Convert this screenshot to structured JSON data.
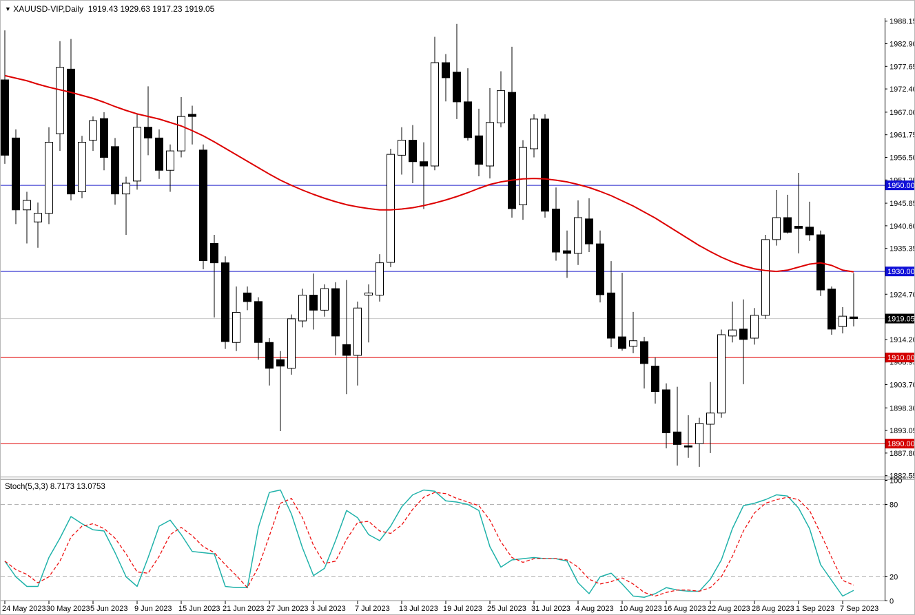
{
  "window": {
    "symbol_timeframe": "XAUUSD-VIP,Daily",
    "dropdown_arrow": "▼"
  },
  "chart_data": {
    "type": "candlestick",
    "symbol": "XAUUSD-VIP",
    "timeframe": "Daily",
    "title_ohlc": {
      "open": "1919.43",
      "high": "1929.63",
      "low": "1917.23",
      "close": "1919.05"
    },
    "layout_hints": {
      "ylim": [
        1882.5,
        1988.9
      ],
      "stoch_ylim": [
        0,
        100
      ],
      "grid": false,
      "legend_position": "none"
    },
    "colors": {
      "bull_fill": "#ffffff",
      "bear_fill": "#000000",
      "outline": "#000000",
      "ma": "#dd0000",
      "blue_line": "#2222cc",
      "blue_box": "#1010d8",
      "red_line": "#e00000",
      "red_box": "#d40000",
      "price_line": "#c8c8c8",
      "price_box": "#000000",
      "stoch_k": "#20b2aa",
      "stoch_d": "#ee1111",
      "stoch_level": "#b4b4b4"
    },
    "price_ticks": [
      {
        "label": "1988.15",
        "price": 1988.15
      },
      {
        "label": "1982.90",
        "price": 1982.9
      },
      {
        "label": "1977.65",
        "price": 1977.65
      },
      {
        "label": "1972.40",
        "price": 1972.4
      },
      {
        "label": "1967.00",
        "price": 1967.0
      },
      {
        "label": "1961.75",
        "price": 1961.75
      },
      {
        "label": "1956.50",
        "price": 1956.5
      },
      {
        "label": "1951.25",
        "price": 1951.25
      },
      {
        "label": "1945.85",
        "price": 1945.85
      },
      {
        "label": "1940.60",
        "price": 1940.6
      },
      {
        "label": "1935.35",
        "price": 1935.35
      },
      {
        "label": "1924.70",
        "price": 1924.7
      },
      {
        "label": "1914.20",
        "price": 1914.2
      },
      {
        "label": "1908.95",
        "price": 1908.95
      },
      {
        "label": "1903.70",
        "price": 1903.7
      },
      {
        "label": "1898.30",
        "price": 1898.3
      },
      {
        "label": "1893.05",
        "price": 1893.05
      },
      {
        "label": "1887.80",
        "price": 1887.8
      },
      {
        "label": "1882.55",
        "price": 1882.55
      }
    ],
    "date_ticks": [
      "24 May 2023",
      "30 May 2023",
      "5 Jun 2023",
      "9 Jun 2023",
      "15 Jun 2023",
      "21 Jun 2023",
      "27 Jun 2023",
      "3 Jul 2023",
      "7 Jul 2023",
      "13 Jul 2023",
      "19 Jul 2023",
      "25 Jul 2023",
      "31 Jul 2023",
      "4 Aug 2023",
      "10 Aug 2023",
      "16 Aug 2023",
      "22 Aug 2023",
      "28 Aug 2023",
      "1 Sep 2023",
      "7 Sep 2023"
    ],
    "date_tick_every_n_candles": 4,
    "hlines": [
      {
        "label": "1950.00",
        "price": 1950.0,
        "style": "blue"
      },
      {
        "label": "1930.00",
        "price": 1930.0,
        "style": "blue"
      },
      {
        "label": "1910.00",
        "price": 1910.0,
        "style": "red"
      },
      {
        "label": "1890.00",
        "price": 1890.0,
        "style": "red"
      }
    ],
    "price_line": {
      "label": "1919.05",
      "price": 1919.05
    },
    "candles": [
      [
        1974.5,
        1986.0,
        1955.0,
        1957.0
      ],
      [
        1961.0,
        1963.0,
        1941.0,
        1944.3
      ],
      [
        1944.3,
        1948.5,
        1936.5,
        1946.5
      ],
      [
        1941.5,
        1946.0,
        1935.5,
        1943.5
      ],
      [
        1943.5,
        1963.5,
        1941.0,
        1960.0
      ],
      [
        1962.0,
        1983.5,
        1958.0,
        1977.4
      ],
      [
        1977.0,
        1984.0,
        1946.5,
        1948.0
      ],
      [
        1948.5,
        1961.5,
        1947.0,
        1960.0
      ],
      [
        1960.5,
        1966.0,
        1958.0,
        1965.0
      ],
      [
        1965.5,
        1967.0,
        1953.5,
        1956.5
      ],
      [
        1959.0,
        1961.0,
        1945.5,
        1948.0
      ],
      [
        1948.0,
        1952.0,
        1938.5,
        1950.5
      ],
      [
        1951.0,
        1966.5,
        1949.0,
        1963.5
      ],
      [
        1963.5,
        1973.0,
        1957.0,
        1961.0
      ],
      [
        1961.0,
        1963.0,
        1951.5,
        1953.5
      ],
      [
        1953.5,
        1959.5,
        1948.5,
        1958.0
      ],
      [
        1958.0,
        1970.5,
        1956.5,
        1966.0
      ],
      [
        1966.5,
        1968.5,
        1959.5,
        1966.0
      ],
      [
        1958.2,
        1959.5,
        1930.5,
        1932.5
      ],
      [
        1936.5,
        1938.5,
        1919.3,
        1932.0
      ],
      [
        1932.0,
        1933.5,
        1912.0,
        1913.7
      ],
      [
        1913.5,
        1926.5,
        1911.5,
        1920.5
      ],
      [
        1925.0,
        1926.5,
        1921.0,
        1923.0
      ],
      [
        1923.0,
        1924.0,
        1909.5,
        1913.5
      ],
      [
        1913.5,
        1914.5,
        1903.5,
        1907.5
      ],
      [
        1909.5,
        1911.5,
        1892.9,
        1908.0
      ],
      [
        1907.5,
        1920.0,
        1906.0,
        1919.0
      ],
      [
        1918.5,
        1926.0,
        1917.0,
        1924.5
      ],
      [
        1924.5,
        1929.5,
        1916.5,
        1921.0
      ],
      [
        1921.0,
        1927.0,
        1919.5,
        1926.0
      ],
      [
        1926.0,
        1927.5,
        1910.5,
        1915.0
      ],
      [
        1913.0,
        1928.0,
        1901.5,
        1910.5
      ],
      [
        1910.5,
        1923.0,
        1903.5,
        1921.5
      ],
      [
        1924.5,
        1927.0,
        1913.5,
        1925.0
      ],
      [
        1924.5,
        1934.0,
        1923.0,
        1932.0
      ],
      [
        1932.1,
        1958.5,
        1931.0,
        1957.2
      ],
      [
        1957.0,
        1963.5,
        1952.5,
        1960.5
      ],
      [
        1960.5,
        1964.0,
        1950.5,
        1955.5
      ],
      [
        1955.5,
        1960.0,
        1944.5,
        1954.5
      ],
      [
        1954.5,
        1984.5,
        1953.5,
        1978.5
      ],
      [
        1978.5,
        1980.5,
        1969.5,
        1975.0
      ],
      [
        1976.3,
        1987.5,
        1965.4,
        1969.4
      ],
      [
        1969.4,
        1977.2,
        1960.4,
        1961.1
      ],
      [
        1961.5,
        1967.8,
        1952.1,
        1954.9
      ],
      [
        1954.5,
        1972.6,
        1951.6,
        1964.6
      ],
      [
        1964.5,
        1976.5,
        1963.5,
        1972.0
      ],
      [
        1971.6,
        1982.2,
        1942.5,
        1944.6
      ],
      [
        1945.5,
        1960.5,
        1942.0,
        1958.8
      ],
      [
        1958.5,
        1966.5,
        1956.5,
        1965.4
      ],
      [
        1965.4,
        1966.5,
        1942.5,
        1944.0
      ],
      [
        1944.5,
        1949.5,
        1932.5,
        1934.5
      ],
      [
        1934.8,
        1939.5,
        1928.5,
        1934.2
      ],
      [
        1934.2,
        1946.5,
        1931.5,
        1942.5
      ],
      [
        1942.2,
        1947.0,
        1934.5,
        1936.4
      ],
      [
        1936.4,
        1939.5,
        1922.8,
        1924.6
      ],
      [
        1925.0,
        1932.4,
        1912.4,
        1914.5
      ],
      [
        1914.8,
        1929.7,
        1911.6,
        1912.1
      ],
      [
        1912.6,
        1920.6,
        1911.0,
        1913.9
      ],
      [
        1913.7,
        1914.8,
        1902.8,
        1908.6
      ],
      [
        1908.0,
        1910.0,
        1899.3,
        1902.1
      ],
      [
        1902.5,
        1904.0,
        1888.9,
        1892.5
      ],
      [
        1892.7,
        1903.2,
        1884.9,
        1889.8
      ],
      [
        1889.5,
        1896.6,
        1886.7,
        1889.2
      ],
      [
        1890.0,
        1896.0,
        1884.6,
        1894.7
      ],
      [
        1894.5,
        1904.3,
        1887.8,
        1897.1
      ],
      [
        1897.1,
        1916.5,
        1896.0,
        1915.3
      ],
      [
        1915.0,
        1923.0,
        1913.5,
        1916.4
      ],
      [
        1916.6,
        1923.5,
        1903.8,
        1914.2
      ],
      [
        1914.5,
        1921.5,
        1913.0,
        1919.8
      ],
      [
        1919.8,
        1938.5,
        1919.0,
        1937.4
      ],
      [
        1937.4,
        1948.9,
        1936.0,
        1942.5
      ],
      [
        1942.5,
        1947.8,
        1938.8,
        1939.1
      ],
      [
        1940.5,
        1952.9,
        1934.2,
        1940.0
      ],
      [
        1940.3,
        1946.2,
        1937.1,
        1938.5
      ],
      [
        1938.5,
        1939.5,
        1924.3,
        1925.7
      ],
      [
        1925.9,
        1926.5,
        1915.3,
        1916.6
      ],
      [
        1917.2,
        1921.7,
        1915.6,
        1919.6
      ],
      [
        1919.43,
        1929.63,
        1917.23,
        1919.05
      ]
    ],
    "ma": {
      "label": "moving-average",
      "values": [
        1975.5,
        1974.9,
        1974.3,
        1973.5,
        1972.8,
        1972.2,
        1971.6,
        1970.9,
        1970.2,
        1969.3,
        1968.3,
        1967.4,
        1966.6,
        1966.0,
        1965.4,
        1964.6,
        1963.8,
        1962.7,
        1961.5,
        1960.1,
        1958.6,
        1957.1,
        1955.6,
        1954.1,
        1952.6,
        1951.2,
        1950.0,
        1948.9,
        1947.9,
        1947.0,
        1946.2,
        1945.5,
        1945.0,
        1944.6,
        1944.3,
        1944.3,
        1944.5,
        1944.8,
        1945.3,
        1945.9,
        1946.6,
        1947.4,
        1948.3,
        1949.3,
        1950.2,
        1950.8,
        1951.2,
        1951.5,
        1951.6,
        1951.5,
        1951.2,
        1950.8,
        1950.2,
        1949.5,
        1948.6,
        1947.6,
        1946.4,
        1945.2,
        1943.8,
        1942.4,
        1940.8,
        1939.2,
        1937.6,
        1936.0,
        1934.6,
        1933.3,
        1932.2,
        1931.3,
        1930.6,
        1930.2,
        1930.0,
        1930.3,
        1931.0,
        1931.7,
        1932.0,
        1931.4,
        1930.3,
        1929.9
      ]
    },
    "stoch": {
      "name": "Stoch(5,3,3)",
      "k_display": "8.7173",
      "d_display": "13.0753",
      "levels": [
        80,
        20
      ],
      "axis_labels": [
        "100",
        "80",
        "20",
        "0"
      ],
      "axis_values": [
        100,
        80,
        20,
        0
      ],
      "k": [
        33,
        20,
        12,
        12,
        36,
        52,
        70,
        64,
        59,
        58,
        40,
        20,
        12,
        36,
        62,
        67,
        55,
        41,
        40,
        39,
        12,
        11,
        11,
        61,
        90,
        92,
        72,
        44,
        21,
        27,
        50,
        75,
        69,
        55,
        50,
        62,
        78,
        88,
        92,
        91,
        83,
        82,
        80,
        75,
        45,
        28,
        34,
        35,
        36,
        35,
        35,
        33,
        15,
        6,
        20,
        23,
        14,
        4,
        3,
        6,
        11,
        9,
        8,
        8,
        18,
        34,
        60,
        79,
        81,
        84,
        88,
        87,
        77,
        60,
        30,
        17,
        4,
        8.72
      ],
      "d": [
        33,
        26,
        22,
        15,
        20,
        33,
        53,
        62,
        64,
        60,
        52,
        39,
        24,
        23,
        37,
        55,
        61,
        54,
        45,
        40,
        30,
        21,
        11,
        28,
        54,
        81,
        85,
        69,
        46,
        31,
        33,
        51,
        65,
        66,
        58,
        56,
        63,
        76,
        86,
        90,
        89,
        85,
        82,
        79,
        67,
        49,
        36,
        32,
        35,
        35,
        35,
        34,
        28,
        18,
        14,
        16,
        19,
        14,
        7,
        4,
        7,
        9,
        9,
        8,
        11,
        20,
        37,
        58,
        73,
        81,
        84,
        86,
        84,
        75,
        56,
        36,
        17,
        13.08
      ]
    }
  }
}
